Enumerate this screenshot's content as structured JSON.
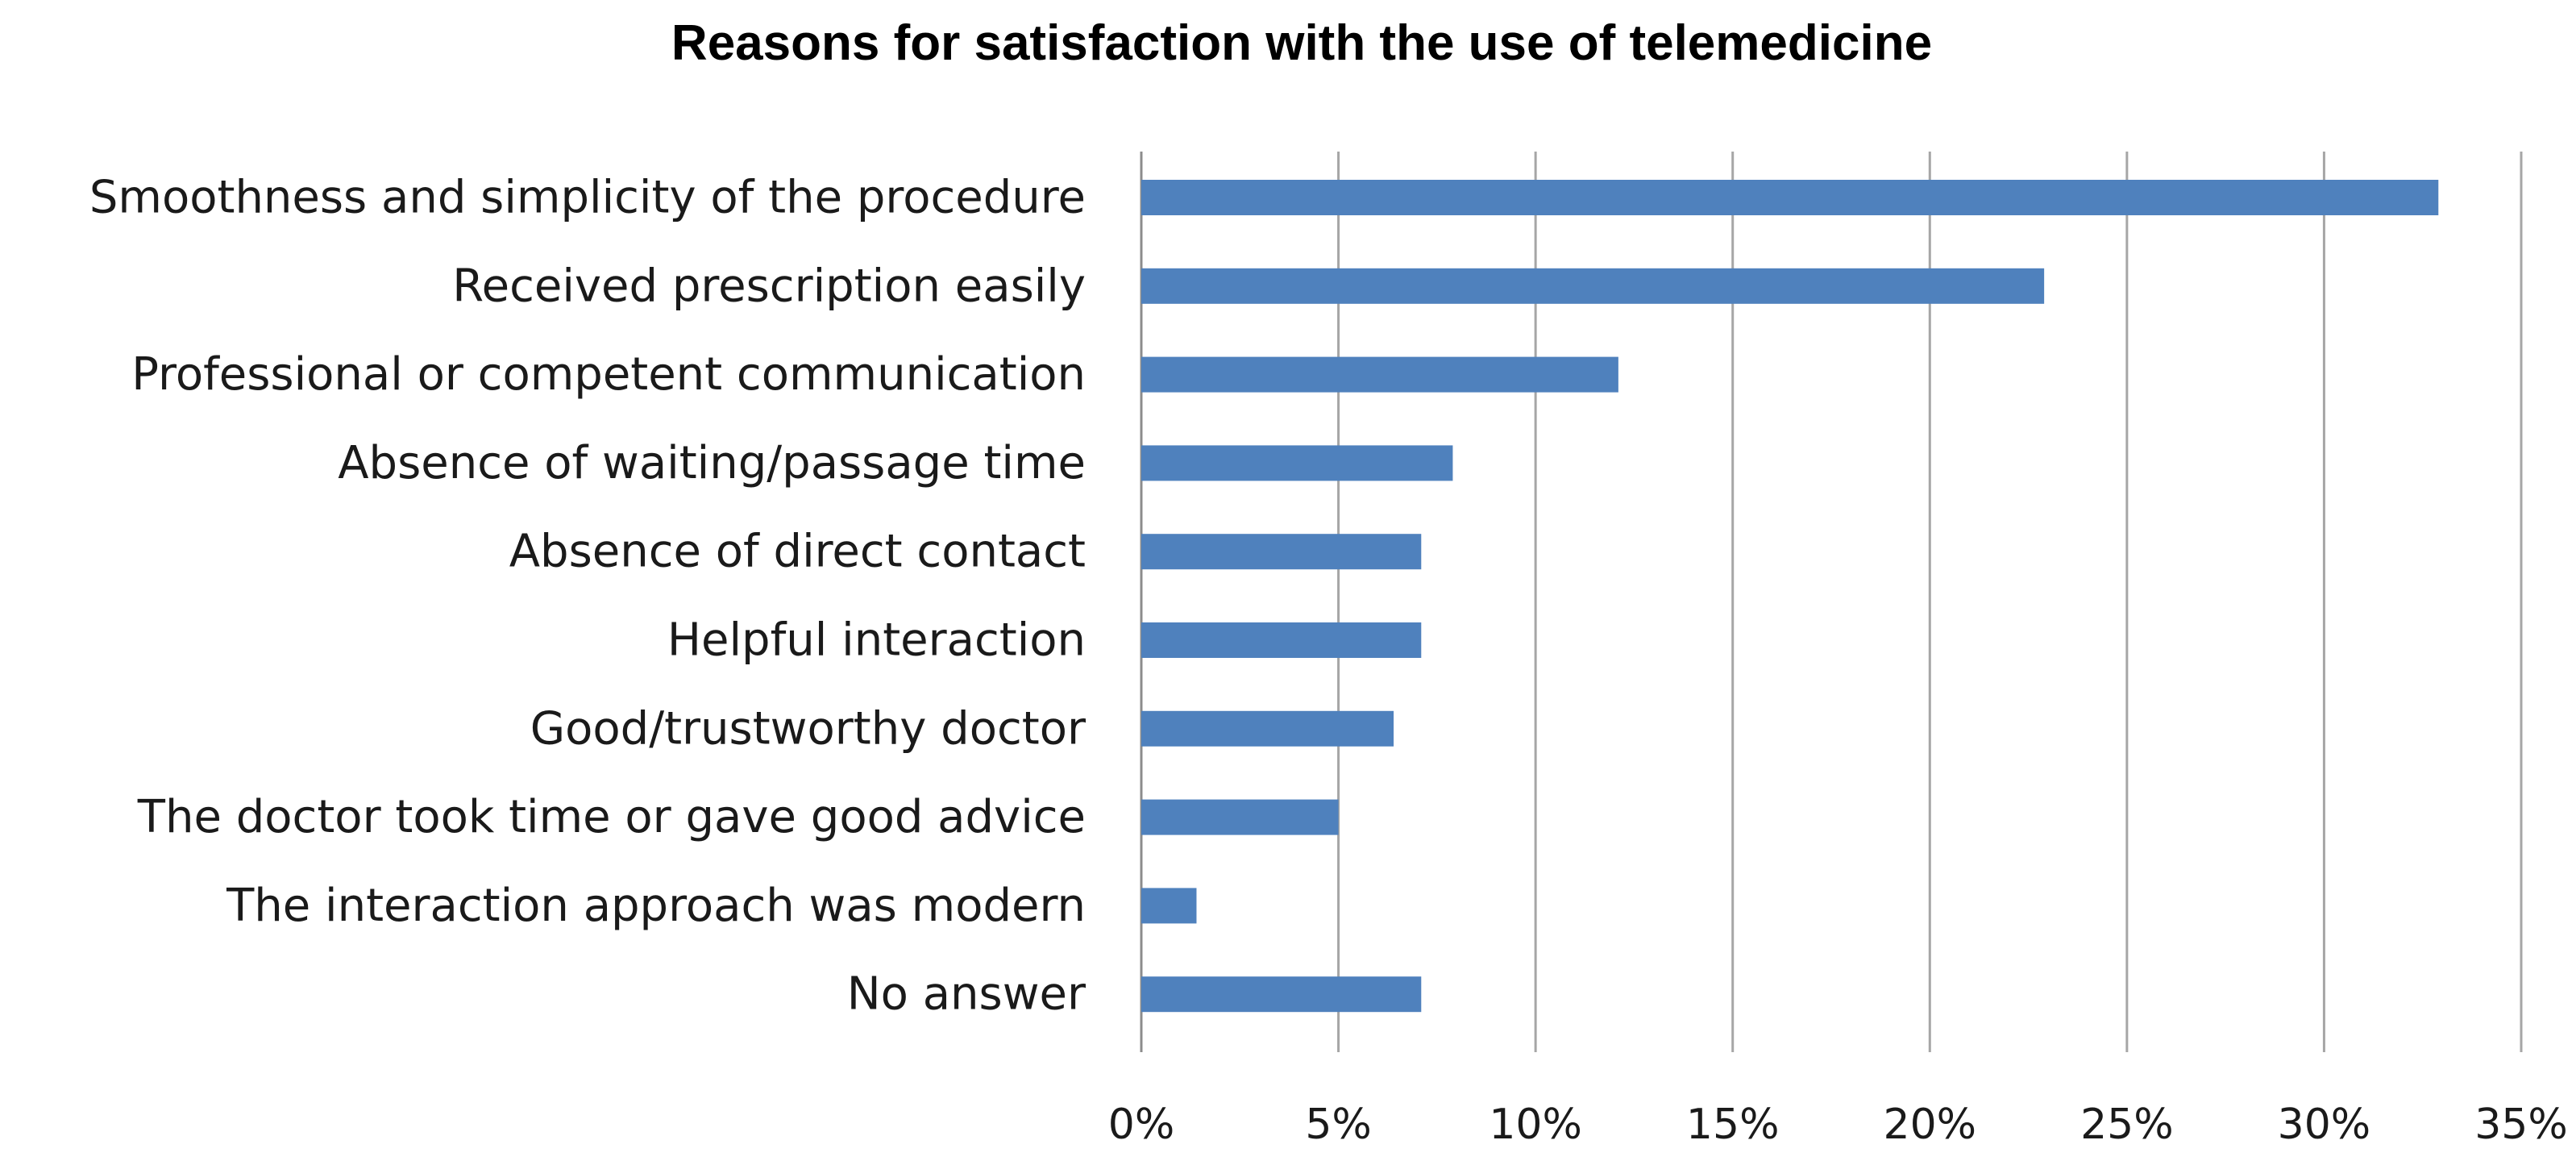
{
  "chart_data": {
    "type": "bar",
    "orientation": "horizontal",
    "title": "Reasons for satisfaction with the use of telemedicine",
    "xlabel": "",
    "ylabel": "",
    "categories": [
      "Smoothness and simplicity of the procedure",
      "Received prescription easily",
      "Professional or competent communication",
      "Absence of waiting/passage time",
      "Absence of direct contact",
      "Helpful interaction",
      "Good/trustworthy doctor",
      "The doctor took time or gave good advice",
      "The interaction approach was modern",
      "No answer"
    ],
    "values": [
      32.9,
      22.9,
      12.1,
      7.9,
      7.1,
      7.1,
      6.4,
      5.0,
      1.4,
      7.1
    ],
    "xlim": [
      0,
      35
    ],
    "xticks": [
      0,
      5,
      10,
      15,
      20,
      25,
      30,
      35
    ],
    "xtick_labels": [
      "0%",
      "5%",
      "10%",
      "15%",
      "20%",
      "25%",
      "30%",
      "35%"
    ],
    "grid": "vertical",
    "legend": "none",
    "bar_color": "#4f81bd"
  }
}
